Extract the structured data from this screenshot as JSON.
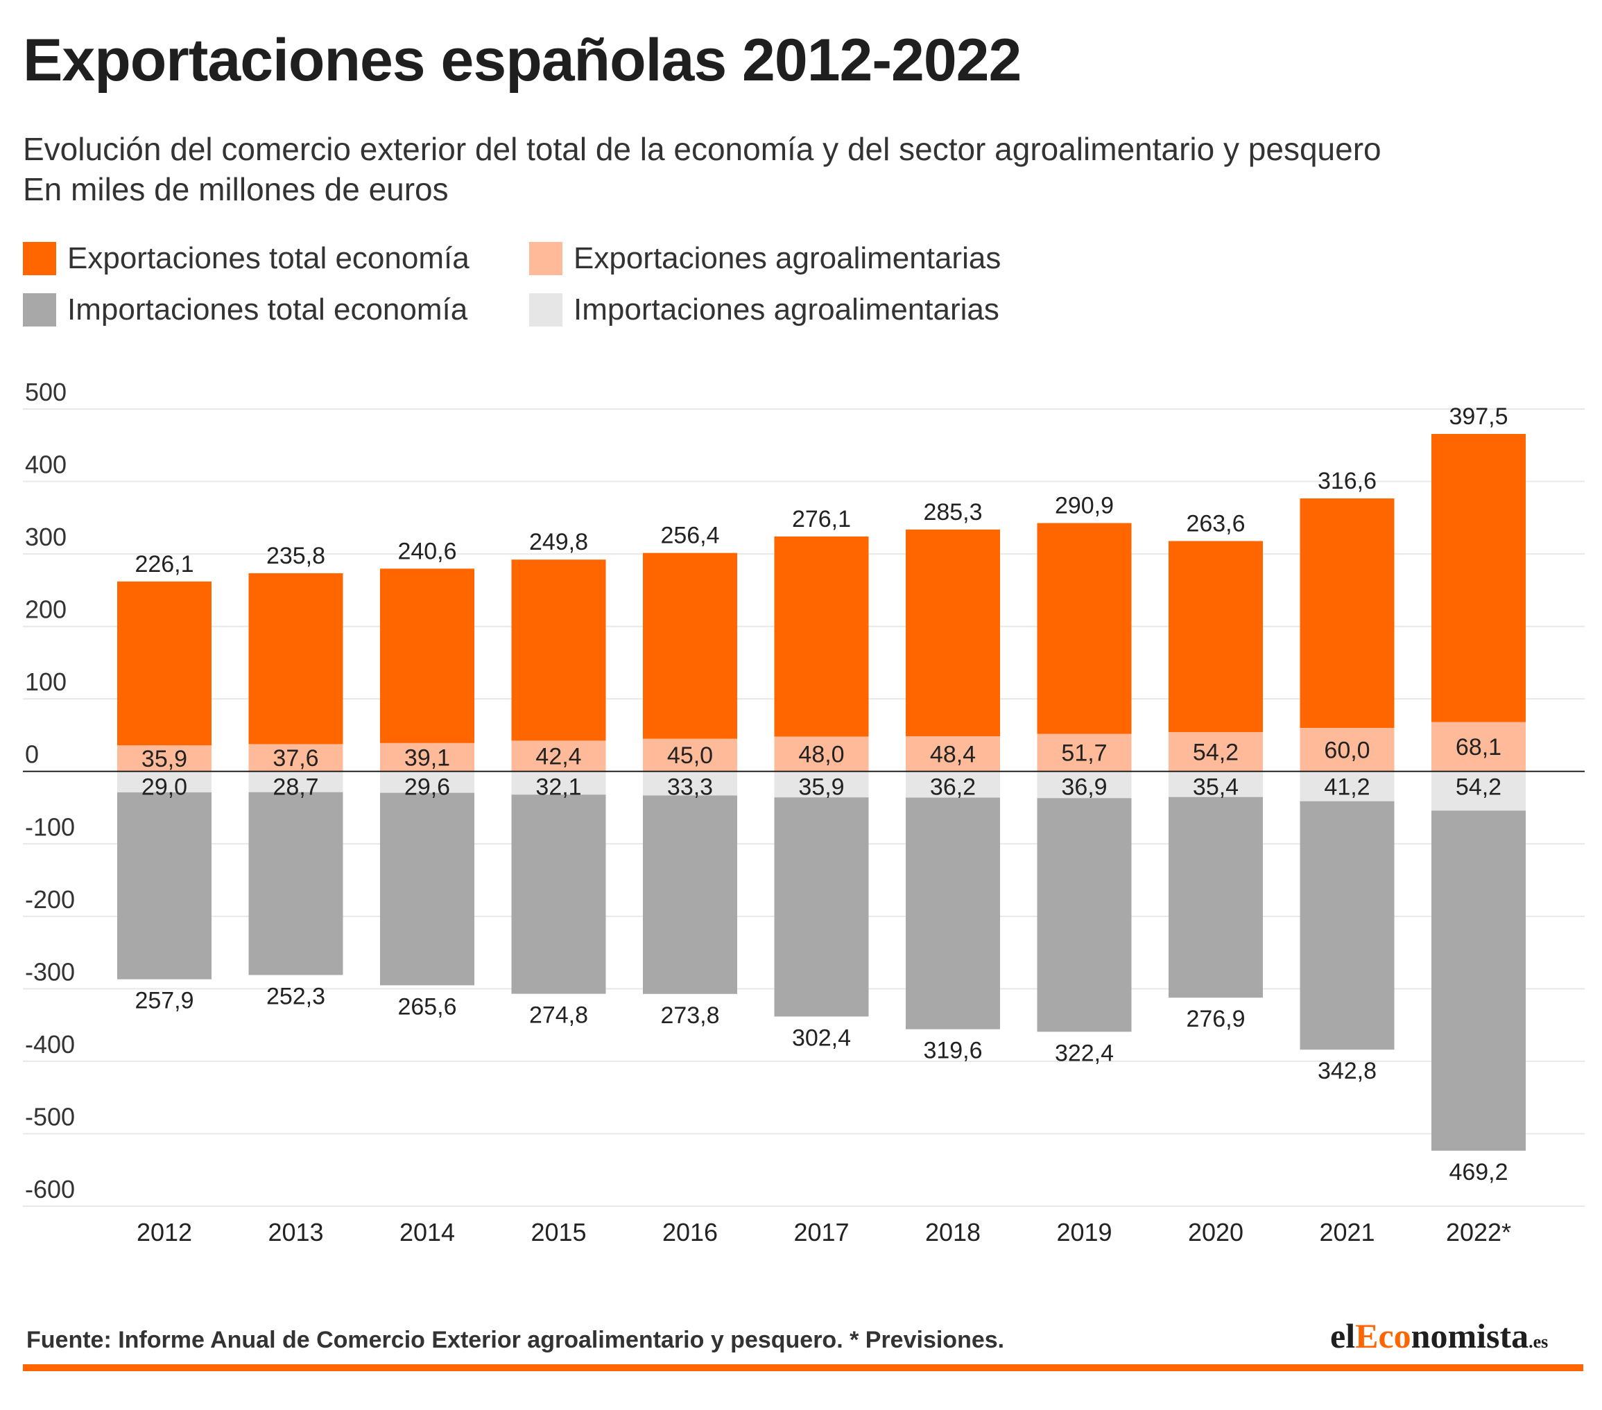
{
  "title": "Exportaciones españolas 2012-2022",
  "subtitle_line1": "Evolución del comercio exterior del total de la economía y del sector agroalimentario y pesquero",
  "subtitle_line2": "En miles de millones de euros",
  "legend": [
    {
      "label": "Exportaciones total economía",
      "color": "#ff6600"
    },
    {
      "label": "Exportaciones agroalimentarias",
      "color": "#ffbb99"
    },
    {
      "label": "Importaciones total economía",
      "color": "#a8a8a8"
    },
    {
      "label": "Importaciones agroalimentarias",
      "color": "#e6e6e6"
    }
  ],
  "source": "Fuente: Informe Anual de Comercio Exterior agroalimentario y pesquero. * Previsiones.",
  "logo": {
    "part1": "el",
    "part2": "Eco",
    "part3": "nomista",
    "part4": ".es"
  },
  "accent_color": "#ff6600",
  "chart_data": {
    "type": "bar",
    "stacked": true,
    "categories": [
      "2012",
      "2013",
      "2014",
      "2015",
      "2016",
      "2017",
      "2018",
      "2019",
      "2020",
      "2021",
      "2022*"
    ],
    "series": [
      {
        "name": "Exportaciones agroalimentarias",
        "color": "#ffbb99",
        "values": [
          35.9,
          37.6,
          39.1,
          42.4,
          45.0,
          48.0,
          48.4,
          51.7,
          54.2,
          60.0,
          68.1
        ]
      },
      {
        "name": "Exportaciones total economía",
        "color": "#ff6600",
        "values": [
          226.1,
          235.8,
          240.6,
          249.8,
          256.4,
          276.1,
          285.3,
          290.9,
          263.6,
          316.6,
          397.5
        ]
      },
      {
        "name": "Importaciones agroalimentarias",
        "color": "#e6e6e6",
        "values": [
          -29.0,
          -28.7,
          -29.6,
          -32.1,
          -33.3,
          -35.9,
          -36.2,
          -36.9,
          -35.4,
          -41.2,
          -54.2
        ]
      },
      {
        "name": "Importaciones total economía",
        "color": "#a8a8a8",
        "values": [
          -257.9,
          -252.3,
          -265.6,
          -274.8,
          -273.8,
          -302.4,
          -319.6,
          -322.4,
          -276.9,
          -342.8,
          -469.2
        ]
      }
    ],
    "data_labels": {
      "exports_agro": [
        "35,9",
        "37,6",
        "39,1",
        "42,4",
        "45,0",
        "48,0",
        "48,4",
        "51,7",
        "54,2",
        "60,0",
        "68,1"
      ],
      "exports_total": [
        "226,1",
        "235,8",
        "240,6",
        "249,8",
        "256,4",
        "276,1",
        "285,3",
        "290,9",
        "263,6",
        "316,6",
        "397,5"
      ],
      "imports_agro": [
        "29,0",
        "28,7",
        "29,6",
        "32,1",
        "33,3",
        "35,9",
        "36,2",
        "36,9",
        "35,4",
        "41,2",
        "54,2"
      ],
      "imports_total": [
        "257,9",
        "252,3",
        "265,6",
        "274,8",
        "273,8",
        "302,4",
        "319,6",
        "322,4",
        "276,9",
        "342,8",
        "469,2"
      ]
    },
    "y_ticks": [
      "500",
      "400",
      "300",
      "200",
      "100",
      "0",
      "-100",
      "-200",
      "-300",
      "-400",
      "-500",
      "-600"
    ],
    "y_tick_values": [
      500,
      400,
      300,
      200,
      100,
      0,
      -100,
      -200,
      -300,
      -400,
      -500,
      -600
    ],
    "ylim": [
      -600,
      500
    ],
    "grid": true,
    "legend_position": "top-left"
  }
}
